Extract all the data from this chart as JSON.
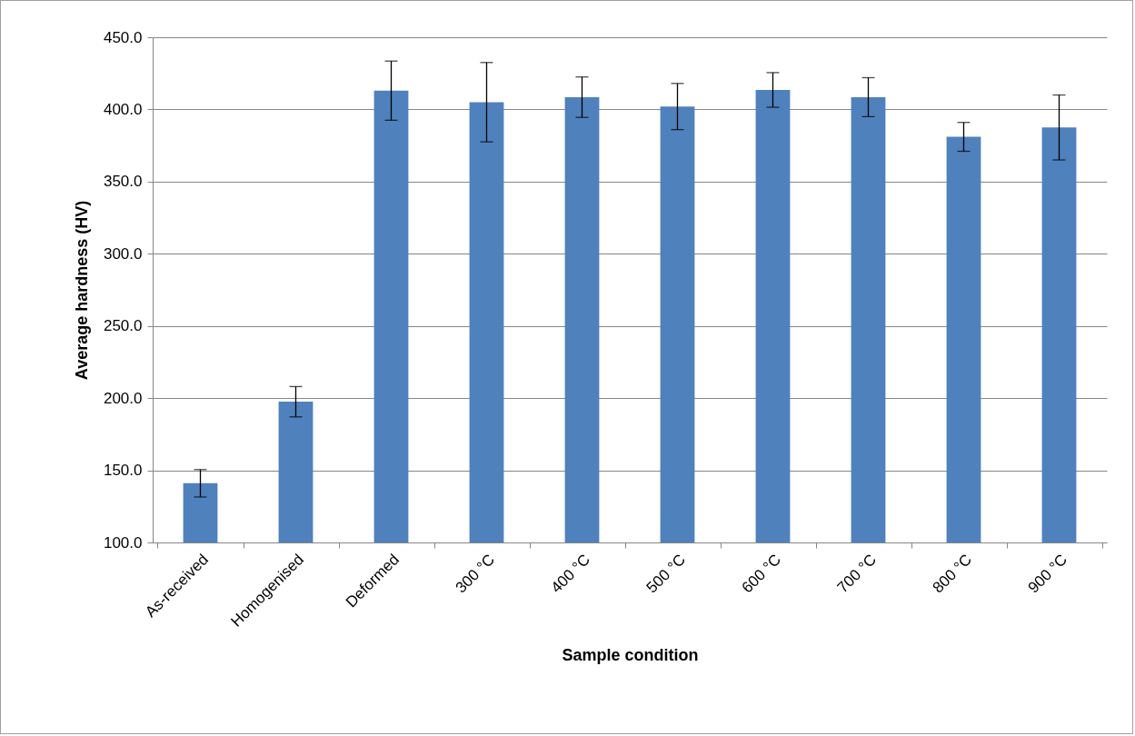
{
  "chart_data": {
    "type": "bar",
    "xlabel": "Sample condition",
    "ylabel": "Average hardness (HV)",
    "categories": [
      "As-received",
      "Homogenised",
      "Deformed",
      "300 °C",
      "400 °C",
      "500 °C",
      "600 °C",
      "700 °C",
      "800 °C",
      "900 °C"
    ],
    "values": [
      141,
      197.5,
      413,
      405,
      408.5,
      402,
      413.5,
      408.5,
      381,
      387.5
    ],
    "errors": [
      9.5,
      10.5,
      20.5,
      27.5,
      14,
      16,
      12,
      13.5,
      10,
      22.5
    ],
    "color": "#4f81bd",
    "ylim": [
      100,
      450
    ],
    "yticks": [
      {
        "value": 100,
        "label": "100.0"
      },
      {
        "value": 150,
        "label": "150.0"
      },
      {
        "value": 200,
        "label": "200.0"
      },
      {
        "value": 250,
        "label": "250.0"
      },
      {
        "value": 300,
        "label": "300.0"
      },
      {
        "value": 350,
        "label": "350.0"
      },
      {
        "value": 400,
        "label": "400.0"
      },
      {
        "value": 450,
        "label": "450.0"
      }
    ],
    "grid": "y"
  }
}
